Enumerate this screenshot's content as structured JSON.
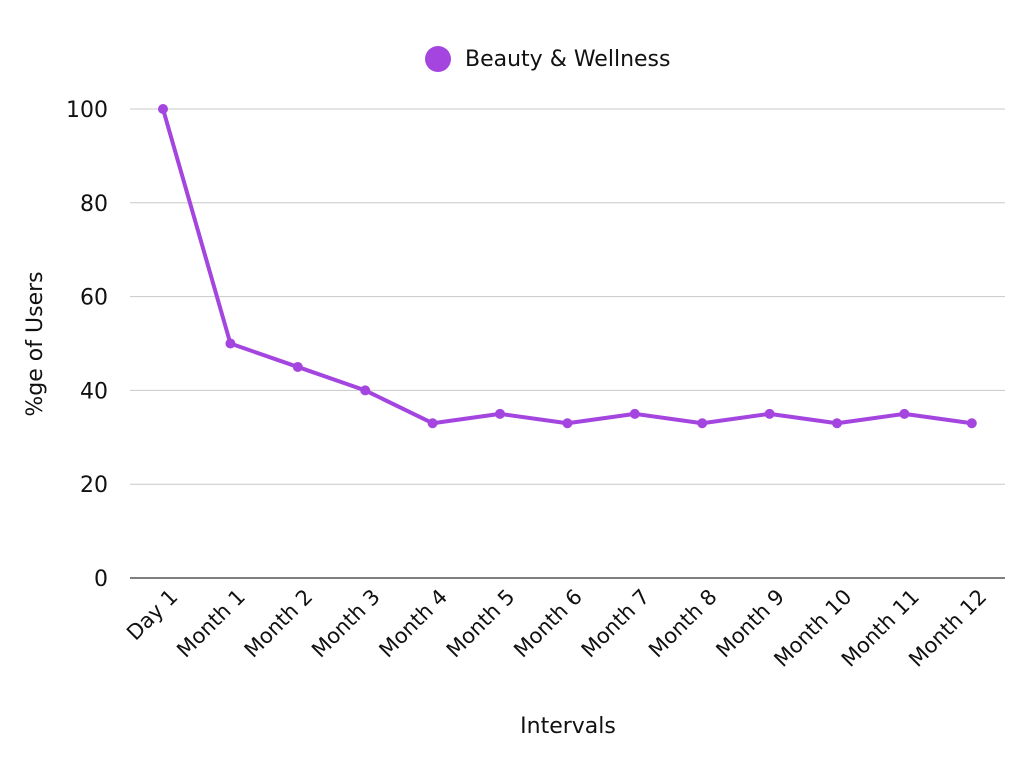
{
  "chart_data": {
    "type": "line",
    "title": "",
    "xlabel": "Intervals",
    "ylabel": "%ge of Users",
    "categories": [
      "Day 1",
      "Month 1",
      "Month 2",
      "Month 3",
      "Month 4",
      "Month 5",
      "Month 6",
      "Month 7",
      "Month 8",
      "Month 9",
      "Month 10",
      "Month 11",
      "Month 12"
    ],
    "series": [
      {
        "name": "Beauty & Wellness",
        "color": "#a445e0",
        "values": [
          100,
          50,
          45,
          40,
          33,
          35,
          33,
          35,
          33,
          35,
          33,
          35,
          33
        ]
      }
    ],
    "ylim": [
      0,
      100
    ],
    "yticks": [
      0,
      20,
      40,
      60,
      80,
      100
    ],
    "grid": true,
    "legend_position": "top-center"
  }
}
